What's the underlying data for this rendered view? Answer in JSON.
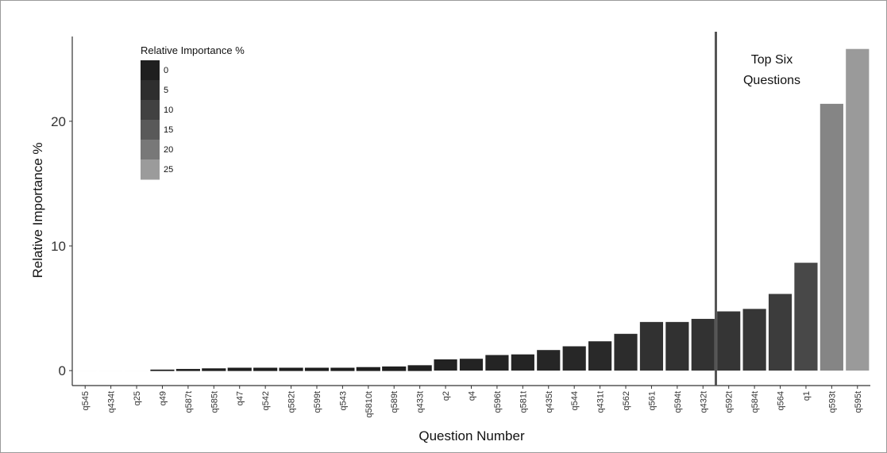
{
  "chart_data": {
    "type": "bar",
    "xlabel": "Question Number",
    "ylabel": "Relative Importance %",
    "ylim": [
      -1.2,
      26.8
    ],
    "yticks": [
      0,
      10,
      20
    ],
    "grid": false,
    "legend": {
      "title": "Relative Importance %",
      "placement": "top-left",
      "entries": [
        {
          "label": "0",
          "color": "#1f1f1f"
        },
        {
          "label": "5",
          "color": "#2e2e2e"
        },
        {
          "label": "10",
          "color": "#414141"
        },
        {
          "label": "15",
          "color": "#595959"
        },
        {
          "label": "20",
          "color": "#787878"
        },
        {
          "label": "25",
          "color": "#9b9b9b"
        }
      ]
    },
    "annotation": {
      "line1": "Top Six",
      "line2": "Questions",
      "after_category": "q432t"
    },
    "categories": [
      "q545",
      "q434t",
      "q25",
      "q49",
      "q587t",
      "q585t",
      "q47",
      "q542",
      "q582t",
      "q599t",
      "q543",
      "q5810t",
      "q589t",
      "q433t",
      "q2",
      "q4",
      "q596t",
      "q581t",
      "q435t",
      "q544",
      "q431t",
      "q562",
      "q561",
      "q594t",
      "q432t",
      "q592t",
      "q584t",
      "q564",
      "q1",
      "q593t",
      "q595t"
    ],
    "values": [
      0,
      0,
      0,
      0.05,
      0.1,
      0.15,
      0.2,
      0.2,
      0.2,
      0.2,
      0.2,
      0.25,
      0.3,
      0.4,
      0.9,
      0.95,
      1.25,
      1.3,
      1.65,
      1.95,
      2.35,
      2.95,
      3.9,
      3.9,
      4.15,
      4.75,
      4.95,
      6.15,
      8.65,
      21.4,
      25.8
    ]
  }
}
